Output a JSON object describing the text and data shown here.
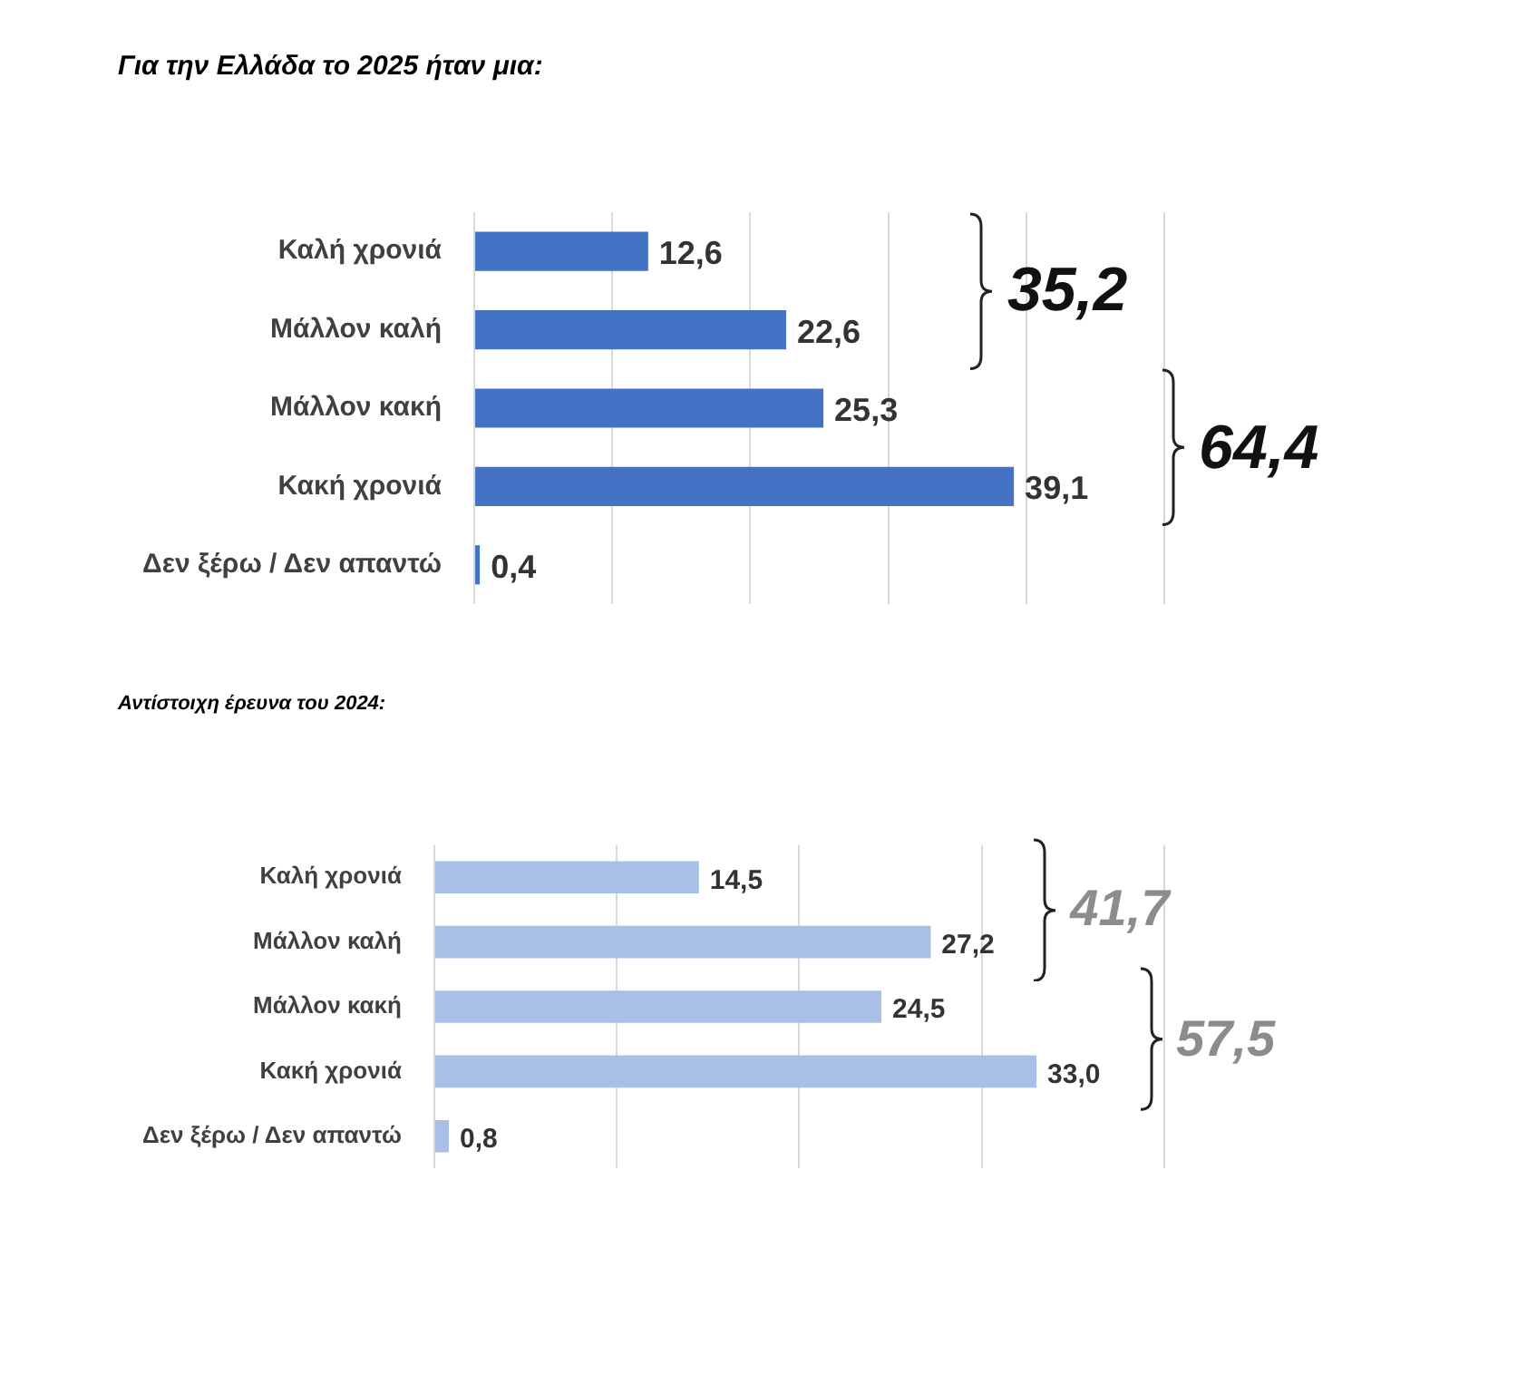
{
  "chart_data": [
    {
      "type": "bar",
      "orientation": "horizontal",
      "title": "Για την Ελλάδα το 2025 ήταν μια:",
      "categories": [
        "Καλή χρονιά",
        "Μάλλον καλή",
        "Μάλλον κακή",
        "Κακή χρονιά",
        "Δεν ξέρω / Δεν απαντώ"
      ],
      "values": [
        12.6,
        22.6,
        25.3,
        39.1,
        0.4
      ],
      "value_labels": [
        "12,6",
        "22,6",
        "25,3",
        "39,1",
        "0,4"
      ],
      "color": "#4472c4",
      "xlim": [
        0,
        50
      ],
      "xticks": [
        {
          "value": 0,
          "label": null
        },
        {
          "value": 10,
          "label": null
        },
        {
          "value": 20,
          "label": null
        },
        {
          "value": 30,
          "label": null
        },
        {
          "value": 40,
          "label": null
        },
        {
          "value": 50,
          "label": null
        }
      ],
      "grid": "x",
      "tick_labels": "y",
      "annotations": [
        "35,2",
        "64,4"
      ]
    },
    {
      "type": "bar",
      "orientation": "horizontal",
      "title": "Αντίστοιχη έρευνα του 2024:",
      "categories": [
        "Καλή χρονιά",
        "Μάλλον καλή",
        "Μάλλον κακή",
        "Κακή χρονιά",
        "Δεν ξέρω / Δεν απαντώ"
      ],
      "values": [
        14.5,
        27.2,
        24.5,
        33.0,
        0.8
      ],
      "value_labels": [
        "14,5",
        "27,2",
        "24,5",
        "33,0",
        "0,8"
      ],
      "color": "#a9bfe6",
      "xlim": [
        0,
        40
      ],
      "xticks": [
        {
          "value": 0,
          "label": null
        },
        {
          "value": 10,
          "label": null
        },
        {
          "value": 20,
          "label": null
        },
        {
          "value": 30,
          "label": null
        },
        {
          "value": 40,
          "label": null
        }
      ],
      "grid": "x",
      "tick_labels": "y",
      "annotations": [
        "41,7",
        "57,5"
      ]
    }
  ]
}
